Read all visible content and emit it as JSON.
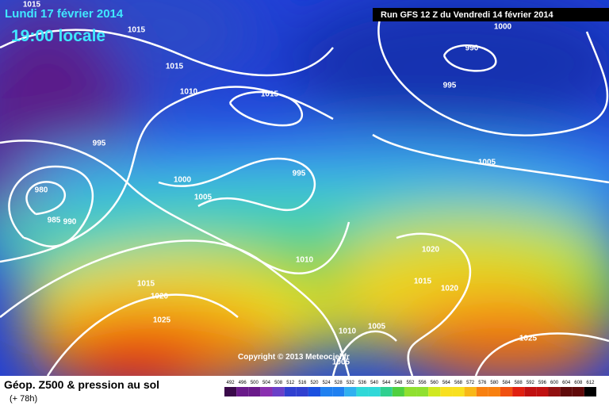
{
  "header": {
    "date": "Lundi 17 février 2014",
    "time": "19:00 locale",
    "run": "Run GFS 12 Z du Vendredi 14 février 2014"
  },
  "copyright": "Copyright © 2013 Meteociel.fr",
  "legend": {
    "title": "Géop. Z500 & pression au sol",
    "lead": "(+ 78h)",
    "scale": [
      492,
      496,
      500,
      504,
      508,
      512,
      516,
      520,
      524,
      528,
      532,
      536,
      540,
      544,
      548,
      552,
      556,
      560,
      564,
      568,
      572,
      576,
      580,
      584,
      588,
      592,
      596,
      600,
      604,
      608,
      612
    ]
  },
  "isobar_labels": [
    "1015",
    "1015",
    "1015",
    "1010",
    "995",
    "980",
    "985",
    "990",
    "1000",
    "1005",
    "1015",
    "995",
    "1010",
    "1000",
    "990",
    "995",
    "1005",
    "1020",
    "1015",
    "1020",
    "1015",
    "1020",
    "1025",
    "1010",
    "1005",
    "1025",
    "1005"
  ]
}
